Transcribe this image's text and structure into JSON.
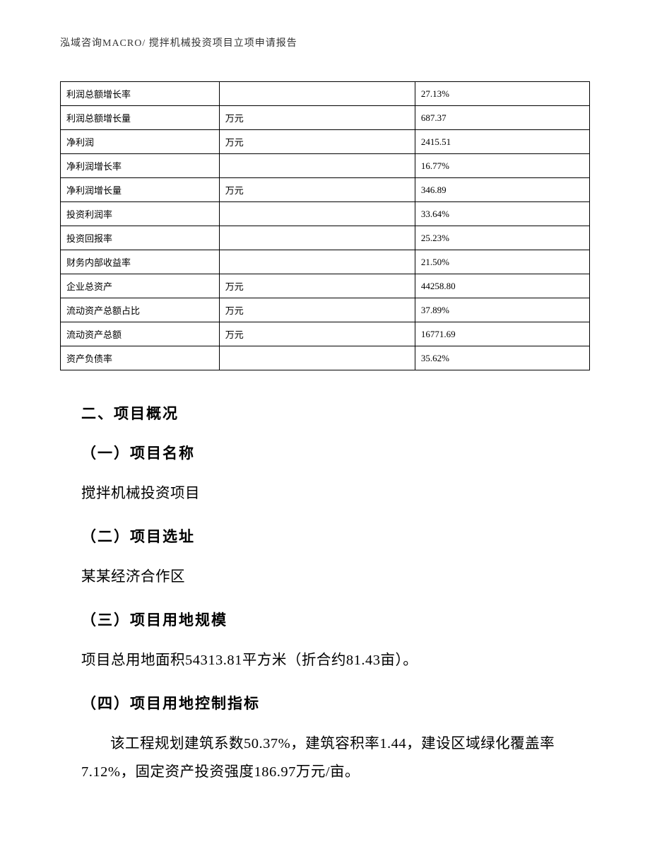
{
  "header": {
    "text": "泓域咨询MACRO/   搅拌机械投资项目立项申请报告"
  },
  "table": {
    "col_widths": [
      "30%",
      "37%",
      "33%"
    ],
    "border_color": "#000000",
    "font_size": 13,
    "rows": [
      {
        "label": "利润总额增长率",
        "unit": "",
        "value": "27.13%"
      },
      {
        "label": "利润总额增长量",
        "unit": "万元",
        "value": "687.37"
      },
      {
        "label": "净利润",
        "unit": "万元",
        "value": "2415.51"
      },
      {
        "label": "净利润增长率",
        "unit": "",
        "value": "16.77%"
      },
      {
        "label": "净利润增长量",
        "unit": "万元",
        "value": "346.89"
      },
      {
        "label": "投资利润率",
        "unit": "",
        "value": "33.64%"
      },
      {
        "label": "投资回报率",
        "unit": "",
        "value": "25.23%"
      },
      {
        "label": "财务内部收益率",
        "unit": "",
        "value": "21.50%"
      },
      {
        "label": "企业总资产",
        "unit": "万元",
        "value": "44258.80"
      },
      {
        "label": "流动资产总额占比",
        "unit": "万元",
        "value": "37.89%"
      },
      {
        "label": "流动资产总额",
        "unit": "万元",
        "value": "16771.69"
      },
      {
        "label": "资产负债率",
        "unit": "",
        "value": "35.62%"
      }
    ]
  },
  "content": {
    "section_heading": "二、项目概况",
    "subsections": [
      {
        "heading": "（一）项目名称",
        "body": "搅拌机械投资项目"
      },
      {
        "heading": "（二）项目选址",
        "body": "某某经济合作区"
      },
      {
        "heading": "（三）项目用地规模",
        "body": "项目总用地面积54313.81平方米（折合约81.43亩）。"
      },
      {
        "heading": "（四）项目用地控制指标",
        "body": "该工程规划建筑系数50.37%，建筑容积率1.44，建设区域绿化覆盖率7.12%，固定资产投资强度186.97万元/亩。"
      }
    ]
  },
  "colors": {
    "background": "#ffffff",
    "text": "#000000",
    "header_text": "#333333",
    "border": "#000000"
  },
  "typography": {
    "header_fontsize": 14,
    "table_fontsize": 13,
    "heading_fontsize": 21,
    "body_fontsize": 20.5,
    "heading_family": "SimHei",
    "body_family": "SimSun"
  }
}
